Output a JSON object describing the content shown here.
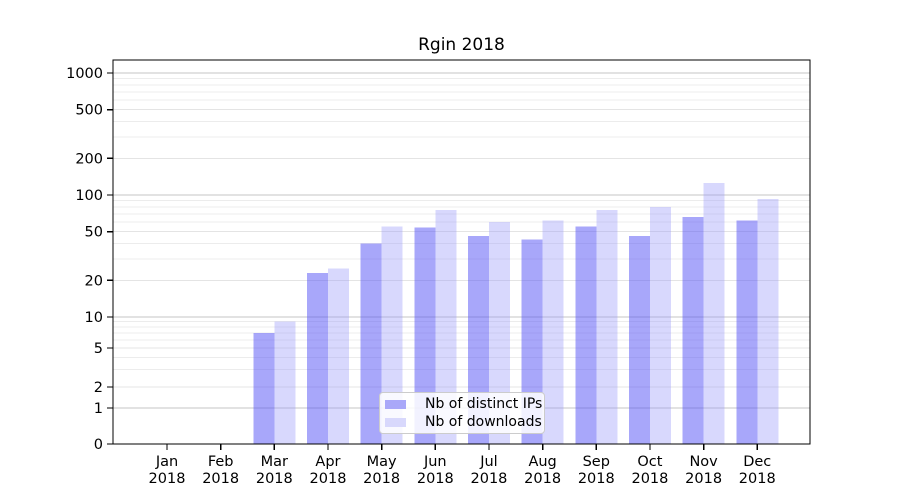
{
  "chart_data": {
    "type": "bar",
    "title": "Rgin 2018",
    "categories": [
      "Jan",
      "Feb",
      "Mar",
      "Apr",
      "May",
      "Jun",
      "Jul",
      "Aug",
      "Sep",
      "Oct",
      "Nov",
      "Dec"
    ],
    "year_label": "2018",
    "series": [
      {
        "name": "Nb of distinct IPs",
        "color": "#a9a8f9",
        "bar_fill": "rgba(82,80,245,0.5)",
        "values": [
          0,
          0,
          7,
          23,
          40,
          54,
          46,
          43,
          55,
          46,
          66,
          62
        ]
      },
      {
        "name": "Nb of downloads",
        "color": "#d8d8fc",
        "bar_fill": "rgba(152,152,250,0.38)",
        "values": [
          0,
          0,
          9,
          25,
          55,
          75,
          60,
          62,
          75,
          80,
          125,
          93
        ]
      }
    ],
    "yticks": [
      0,
      1,
      2,
      5,
      10,
      20,
      50,
      100,
      200,
      500,
      1000
    ],
    "y_scale": "symlog",
    "ylim": [
      0,
      1250
    ],
    "grid": true,
    "legend_position": "lower-center",
    "colors": {
      "grid_major": "#c6c6c6",
      "grid_minor": "#ececec",
      "axis": "#000000",
      "text": "#000000"
    }
  }
}
